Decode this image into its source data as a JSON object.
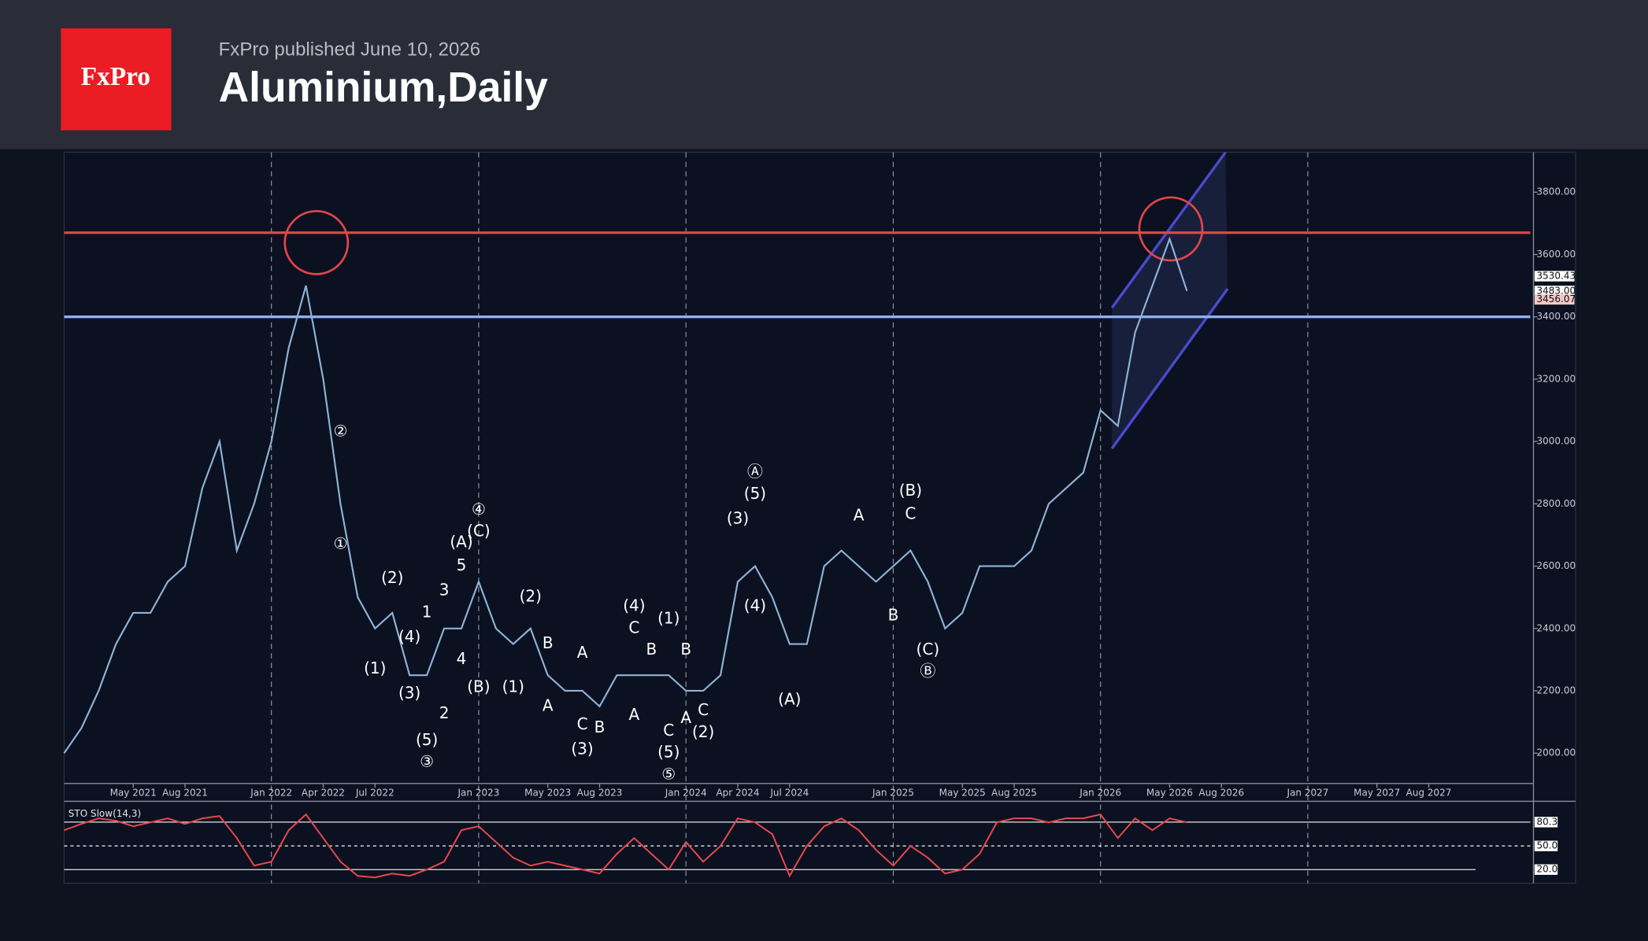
{
  "header": {
    "logo": "FxPro",
    "publisher": "FxPro published June 10, 2026",
    "title": "Aluminium,Daily"
  },
  "chart_data": {
    "type": "line",
    "xlim": [
      "2021-01",
      "2028-02"
    ],
    "ylim": [
      1906,
      3928
    ],
    "xticks": [
      {
        "value": "2021-05",
        "label": "May 2021"
      },
      {
        "value": "2021-08",
        "label": "Aug 2021"
      },
      {
        "value": "2022-01",
        "label": "Jan 2022"
      },
      {
        "value": "2022-04",
        "label": "Apr 2022"
      },
      {
        "value": "2022-07",
        "label": "Jul 2022"
      },
      {
        "value": "2023-01",
        "label": "Jan 2023"
      },
      {
        "value": "2023-05",
        "label": "May 2023"
      },
      {
        "value": "2023-08",
        "label": "Aug 2023"
      },
      {
        "value": "2024-01",
        "label": "Jan 2024"
      },
      {
        "value": "2024-04",
        "label": "Apr 2024"
      },
      {
        "value": "2024-07",
        "label": "Jul 2024"
      },
      {
        "value": "2025-01",
        "label": "Jan 2025"
      },
      {
        "value": "2025-05",
        "label": "May 2025"
      },
      {
        "value": "2025-08",
        "label": "Aug 2025"
      },
      {
        "value": "2026-01",
        "label": "Jan 2026"
      },
      {
        "value": "2026-05",
        "label": "May 2026"
      },
      {
        "value": "2026-08",
        "label": "Aug 2026"
      },
      {
        "value": "2027-01",
        "label": "Jan 2027"
      },
      {
        "value": "2027-05",
        "label": "May 2027"
      },
      {
        "value": "2027-08",
        "label": "Aug 2027"
      }
    ],
    "yticks": [
      {
        "value": 2000,
        "label": "2000.00"
      },
      {
        "value": 2200,
        "label": "2200.00"
      },
      {
        "value": 2400,
        "label": "2400.00"
      },
      {
        "value": 2600,
        "label": "2600.00"
      },
      {
        "value": 2800,
        "label": "2800.00"
      },
      {
        "value": 3000,
        "label": "3000.00"
      },
      {
        "value": 3200,
        "label": "3200.00"
      },
      {
        "value": 3400,
        "label": "3400.00"
      },
      {
        "value": 3600,
        "label": "3600.00"
      },
      {
        "value": 3800,
        "label": "3800.00"
      }
    ],
    "x": [
      "2021-01",
      "2021-02",
      "2021-03",
      "2021-04",
      "2021-05",
      "2021-06",
      "2021-07",
      "2021-08",
      "2021-09",
      "2021-10",
      "2021-11",
      "2021-12",
      "2022-01",
      "2022-02",
      "2022-03",
      "2022-04",
      "2022-05",
      "2022-06",
      "2022-07",
      "2022-08",
      "2022-09",
      "2022-10",
      "2022-11",
      "2022-12",
      "2023-01",
      "2023-02",
      "2023-03",
      "2023-04",
      "2023-05",
      "2023-06",
      "2023-07",
      "2023-08",
      "2023-09",
      "2023-10",
      "2023-11",
      "2023-12",
      "2024-01",
      "2024-02",
      "2024-03",
      "2024-04",
      "2024-05",
      "2024-06",
      "2024-07",
      "2024-08",
      "2024-09",
      "2024-10",
      "2024-11",
      "2024-12",
      "2025-01",
      "2025-02",
      "2025-03",
      "2025-04",
      "2025-05",
      "2025-06",
      "2025-07",
      "2025-08",
      "2025-09",
      "2025-10",
      "2025-11",
      "2025-12",
      "2026-01",
      "2026-02",
      "2026-03",
      "2026-04",
      "2026-05",
      "2026-06"
    ],
    "series": [
      {
        "color": "#8fb3d9",
        "values": [
          2000,
          2080,
          2200,
          2350,
          2450,
          2450,
          2550,
          2600,
          2850,
          3000,
          2650,
          2800,
          3000,
          3300,
          3500,
          3200,
          2800,
          2500,
          2400,
          2450,
          2250,
          2250,
          2400,
          2400,
          2550,
          2400,
          2350,
          2400,
          2250,
          2200,
          2200,
          2150,
          2250,
          2250,
          2250,
          2250,
          2200,
          2200,
          2250,
          2550,
          2600,
          2500,
          2350,
          2350,
          2600,
          2650,
          2600,
          2550,
          2600,
          2650,
          2550,
          2400,
          2450,
          2600,
          2600,
          2600,
          2650,
          2800,
          2850,
          2900,
          3100,
          3050,
          3350,
          3500,
          3650,
          3483
        ]
      }
    ],
    "levels": [
      {
        "value": 3670,
        "color": "#e0464a"
      },
      {
        "value": 3400,
        "color": "#8fb0f0"
      }
    ],
    "price_labels": [
      {
        "value": 3530.43,
        "label": "3530.43"
      },
      {
        "value": 3483.0,
        "label": "3483.00"
      },
      {
        "value": 3456.07,
        "label": "3456.07"
      }
    ],
    "wave_labels": [
      {
        "text": "②",
        "x": "2022-05",
        "y": 3030
      },
      {
        "text": "①",
        "x": "2022-05",
        "y": 2670
      },
      {
        "text": "(2)",
        "x": "2022-08",
        "y": 2560
      },
      {
        "text": "(1)",
        "x": "2022-07",
        "y": 2270
      },
      {
        "text": "(4)",
        "x": "2022-09",
        "y": 2370
      },
      {
        "text": "(3)",
        "x": "2022-09",
        "y": 2190
      },
      {
        "text": "1",
        "x": "2022-10",
        "y": 2450
      },
      {
        "text": "(5)",
        "x": "2022-10",
        "y": 2040
      },
      {
        "text": "③",
        "x": "2022-10",
        "y": 1970
      },
      {
        "text": "2",
        "x": "2022-11",
        "y": 2125
      },
      {
        "text": "3",
        "x": "2022-11",
        "y": 2520
      },
      {
        "text": "4",
        "x": "2022-12",
        "y": 2300
      },
      {
        "text": "5",
        "x": "2022-12",
        "y": 2600
      },
      {
        "text": "(A)",
        "x": "2022-12",
        "y": 2675
      },
      {
        "text": "④",
        "x": "2023-01",
        "y": 2780
      },
      {
        "text": "(C)",
        "x": "2023-01",
        "y": 2710
      },
      {
        "text": "(B)",
        "x": "2023-01",
        "y": 2210
      },
      {
        "text": "(2)",
        "x": "2023-04",
        "y": 2500
      },
      {
        "text": "(1)",
        "x": "2023-03",
        "y": 2210
      },
      {
        "text": "B",
        "x": "2023-05",
        "y": 2350
      },
      {
        "text": "A",
        "x": "2023-05",
        "y": 2150
      },
      {
        "text": "A",
        "x": "2023-07",
        "y": 2320
      },
      {
        "text": "C",
        "x": "2023-07",
        "y": 2090
      },
      {
        "text": "(3)",
        "x": "2023-07",
        "y": 2010
      },
      {
        "text": "B",
        "x": "2023-08",
        "y": 2080
      },
      {
        "text": "(4)",
        "x": "2023-10",
        "y": 2470
      },
      {
        "text": "C",
        "x": "2023-10",
        "y": 2400
      },
      {
        "text": "B",
        "x": "2023-11",
        "y": 2330
      },
      {
        "text": "A",
        "x": "2023-10",
        "y": 2120
      },
      {
        "text": "(1)",
        "x": "2023-12",
        "y": 2430
      },
      {
        "text": "B",
        "x": "2024-01",
        "y": 2330
      },
      {
        "text": "C",
        "x": "2023-12",
        "y": 2070
      },
      {
        "text": "(5)",
        "x": "2023-12",
        "y": 2000
      },
      {
        "text": "⑤",
        "x": "2023-12",
        "y": 1930
      },
      {
        "text": "A",
        "x": "2024-01",
        "y": 2110
      },
      {
        "text": "C",
        "x": "2024-02",
        "y": 2135
      },
      {
        "text": "(2)",
        "x": "2024-02",
        "y": 2065
      },
      {
        "text": "(3)",
        "x": "2024-04",
        "y": 2750
      },
      {
        "text": "(4)",
        "x": "2024-05",
        "y": 2470
      },
      {
        "text": "Ⓐ",
        "x": "2024-05",
        "y": 2900
      },
      {
        "text": "(5)",
        "x": "2024-05",
        "y": 2830
      },
      {
        "text": "(A)",
        "x": "2024-07",
        "y": 2170
      },
      {
        "text": "A",
        "x": "2024-11",
        "y": 2760
      },
      {
        "text": "(B)",
        "x": "2025-02",
        "y": 2840
      },
      {
        "text": "C",
        "x": "2025-02",
        "y": 2765
      },
      {
        "text": "B",
        "x": "2025-01",
        "y": 2440
      },
      {
        "text": "(C)",
        "x": "2025-03",
        "y": 2330
      },
      {
        "text": "Ⓑ",
        "x": "2025-03",
        "y": 2260
      }
    ],
    "indicator": {
      "title": "STO Slow(14,3)",
      "color": "#e8474c",
      "ylim": [
        0,
        100
      ],
      "ticks": [
        {
          "value": 80.3,
          "label": "80.3"
        },
        {
          "value": 50.0,
          "label": "50.0"
        },
        {
          "value": 20.0,
          "label": "20.0"
        }
      ],
      "values": [
        70,
        78,
        85,
        82,
        75,
        80,
        85,
        78,
        85,
        88,
        60,
        25,
        30,
        70,
        90,
        60,
        30,
        12,
        10,
        15,
        12,
        20,
        30,
        70,
        75,
        55,
        35,
        25,
        30,
        25,
        20,
        15,
        40,
        60,
        40,
        20,
        55,
        30,
        50,
        85,
        80,
        65,
        12,
        50,
        75,
        85,
        70,
        45,
        25,
        50,
        35,
        15,
        20,
        40,
        80,
        85,
        85,
        80,
        85,
        85,
        90,
        60,
        85,
        70,
        85,
        80
      ]
    }
  }
}
